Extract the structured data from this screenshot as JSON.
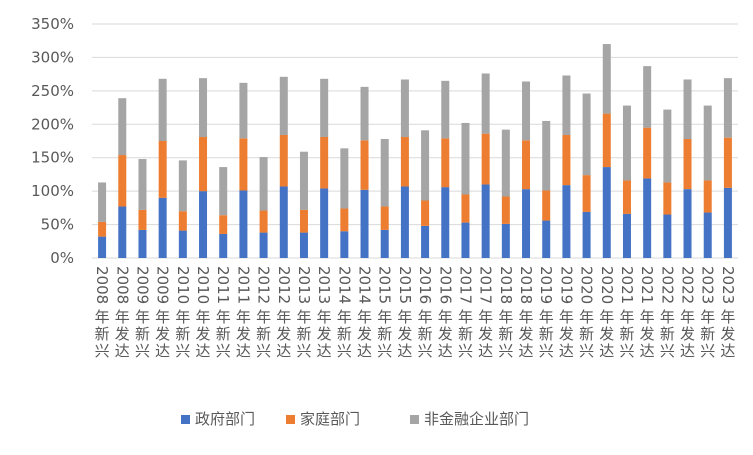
{
  "chart_data": {
    "type": "bar",
    "stacked": true,
    "title": "",
    "xlabel": "",
    "ylabel": "",
    "ylim": [
      0,
      350
    ],
    "yticks": [
      "0%",
      "50%",
      "100%",
      "150%",
      "200%",
      "250%",
      "300%",
      "350%"
    ],
    "grid": true,
    "legend_position": "bottom",
    "categories": [
      "2008年新兴",
      "2008年发达",
      "2009年新兴",
      "2009年发达",
      "2010年新兴",
      "2010年发达",
      "2011年新兴",
      "2011年发达",
      "2012年新兴",
      "2012年发达",
      "2013年新兴",
      "2013年发达",
      "2014年新兴",
      "2014年发达",
      "2015年新兴",
      "2015年发达",
      "2016年新兴",
      "2016年发达",
      "2017年新兴",
      "2017年发达",
      "2018年新兴",
      "2018年发达",
      "2019年新兴",
      "2019年发达",
      "2020年新兴",
      "2020年发达",
      "2021年新兴",
      "2021年发达",
      "2022年新兴",
      "2022年发达",
      "2023年新兴",
      "2023年发达"
    ],
    "series": [
      {
        "name": "政府部门",
        "color": "#4472c4",
        "values": [
          32,
          77,
          42,
          90,
          41,
          100,
          36,
          101,
          38,
          107,
          38,
          104,
          40,
          102,
          42,
          107,
          48,
          106,
          53,
          110,
          51,
          103,
          56,
          109,
          69,
          136,
          66,
          119,
          65,
          103,
          68,
          105
        ]
      },
      {
        "name": "家庭部门",
        "color": "#ed7d31",
        "values": [
          22,
          77,
          30,
          85,
          29,
          81,
          28,
          78,
          33,
          77,
          34,
          77,
          34,
          74,
          35,
          74,
          38,
          73,
          42,
          76,
          41,
          73,
          45,
          75,
          55,
          80,
          50,
          76,
          48,
          75,
          48,
          75
        ]
      },
      {
        "name": "非金融企业部门",
        "color": "#a5a5a5",
        "values": [
          59,
          85,
          76,
          93,
          76,
          88,
          72,
          83,
          80,
          87,
          87,
          87,
          90,
          80,
          101,
          86,
          105,
          86,
          107,
          90,
          100,
          88,
          104,
          89,
          122,
          104,
          112,
          92,
          109,
          89,
          112,
          89
        ]
      }
    ]
  }
}
